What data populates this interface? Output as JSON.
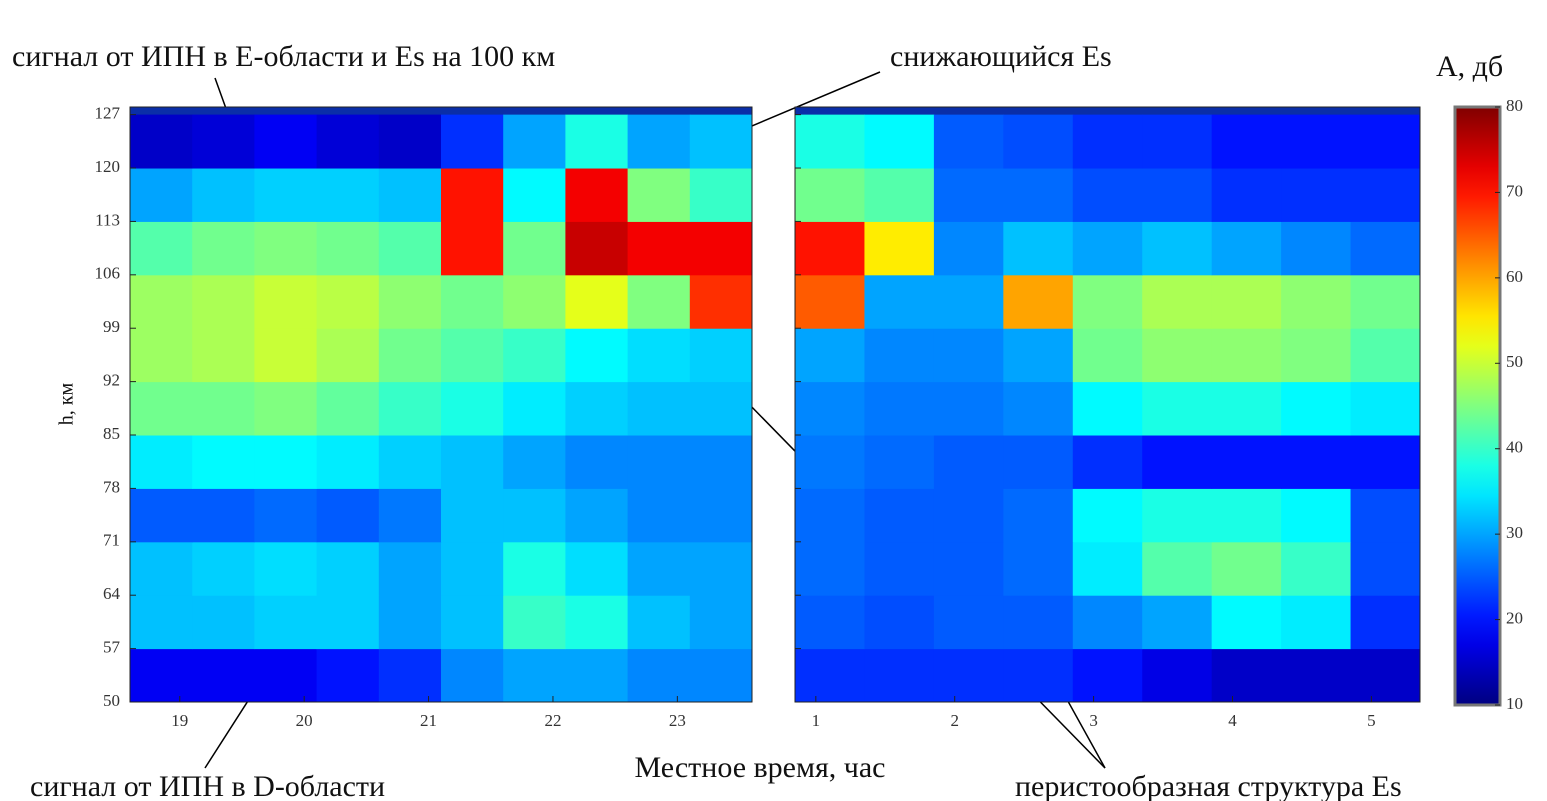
{
  "chart_data": {
    "type": "heatmap",
    "xlabel": "Местное время, час",
    "ylabel": "h, км",
    "ylim": [
      50,
      128
    ],
    "yticks": [
      50,
      57,
      64,
      71,
      78,
      85,
      92,
      99,
      106,
      113,
      120,
      127
    ],
    "ybins": [
      50,
      57,
      64,
      71,
      78,
      85,
      92,
      99,
      106,
      113,
      120,
      127
    ],
    "colormap": "jet",
    "colorbar": {
      "label": "А, дб",
      "lim": [
        10,
        80
      ],
      "ticks": [
        10,
        20,
        30,
        40,
        50,
        60,
        70,
        80
      ]
    },
    "panels": [
      {
        "xlim": [
          18.6,
          23.6
        ],
        "xticks": [
          19,
          20,
          21,
          22,
          23
        ],
        "xbins": [
          18.6,
          19.1,
          19.6,
          20.1,
          20.6,
          21.1,
          21.6,
          22.1,
          22.6,
          23.1,
          23.6
        ],
        "z": [
          [
            18,
            18,
            18,
            20,
            22,
            28,
            30,
            30,
            28,
            28
          ],
          [
            32,
            32,
            33,
            33,
            30,
            32,
            40,
            38,
            32,
            30
          ],
          [
            32,
            33,
            34,
            33,
            30,
            32,
            38,
            34,
            30,
            30
          ],
          [
            25,
            25,
            26,
            25,
            27,
            32,
            32,
            30,
            28,
            28
          ],
          [
            35,
            36,
            36,
            35,
            33,
            32,
            30,
            28,
            28,
            28
          ],
          [
            44,
            44,
            45,
            43,
            40,
            38,
            35,
            33,
            32,
            32
          ],
          [
            47,
            48,
            50,
            48,
            44,
            42,
            40,
            36,
            34,
            33
          ],
          [
            47,
            48,
            50,
            49,
            46,
            44,
            46,
            52,
            45,
            68
          ],
          [
            42,
            44,
            45,
            44,
            42,
            70,
            44,
            75,
            72,
            72
          ],
          [
            30,
            32,
            33,
            33,
            32,
            70,
            36,
            72,
            45,
            40
          ],
          [
            15,
            16,
            18,
            16,
            15,
            22,
            30,
            38,
            30,
            32
          ]
        ]
      },
      {
        "xlim": [
          0.85,
          5.35
        ],
        "xticks": [
          1,
          2,
          3,
          4,
          5
        ],
        "xbins": [
          0.85,
          1.35,
          1.85,
          2.35,
          2.85,
          3.35,
          3.85,
          4.35,
          4.85,
          5.35
        ],
        "z": [
          [
            22,
            22,
            22,
            22,
            20,
            17,
            15,
            15,
            15
          ],
          [
            25,
            24,
            25,
            25,
            28,
            30,
            36,
            35,
            22
          ],
          [
            26,
            25,
            25,
            26,
            35,
            42,
            44,
            40,
            24
          ],
          [
            26,
            25,
            25,
            26,
            36,
            38,
            38,
            36,
            24
          ],
          [
            27,
            26,
            25,
            25,
            22,
            20,
            20,
            20,
            20
          ],
          [
            28,
            27,
            27,
            28,
            36,
            38,
            38,
            36,
            35
          ],
          [
            30,
            28,
            28,
            30,
            44,
            46,
            46,
            45,
            42
          ],
          [
            65,
            30,
            30,
            60,
            45,
            48,
            48,
            46,
            44
          ],
          [
            70,
            55,
            28,
            32,
            30,
            32,
            30,
            28,
            26
          ],
          [
            44,
            42,
            26,
            26,
            24,
            24,
            22,
            22,
            22
          ],
          [
            38,
            36,
            25,
            24,
            22,
            22,
            20,
            20,
            20
          ]
        ]
      }
    ],
    "annotations": [
      "сигнал от ИПН в Е-области и  Es на 100 км",
      "снижающийся Es",
      "сигнал от ИПН в D-области",
      "перистообразная структура Es"
    ]
  }
}
